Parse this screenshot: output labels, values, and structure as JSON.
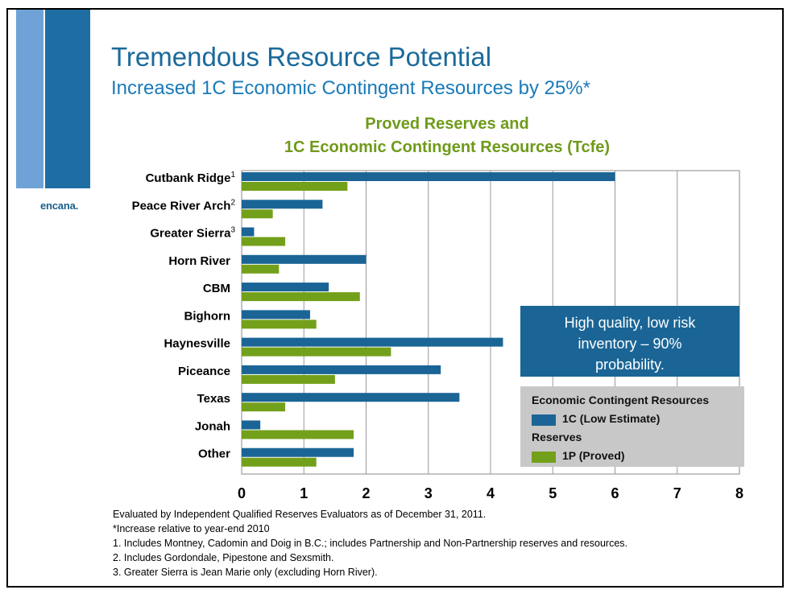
{
  "slide": {
    "title": "Tremendous Resource Potential",
    "subtitle": "Increased 1C Economic Contingent Resources by 25%*",
    "logo": "encana.",
    "colors": {
      "brand_dark": "#1e6ea4",
      "brand_light": "#6fa3d8",
      "series_1c": "#1a6596",
      "series_1p": "#73a01a",
      "title_green": "#6f9a1a"
    }
  },
  "callout": {
    "lines": [
      "High quality, low risk",
      "inventory – 90%",
      "probability."
    ]
  },
  "legend": {
    "heading_contingent": "Economic Contingent Resources",
    "item_1c": "1C (Low Estimate)",
    "heading_reserves": "Reserves",
    "item_1p": "1P (Proved)"
  },
  "notes": [
    "Evaluated by Independent Qualified Reserves Evaluators as of December 31, 2011.",
    "*Increase relative to year-end 2010",
    "1. Includes Montney, Cadomin and Doig in B.C.; includes Partnership and Non-Partnership reserves and resources.",
    "2. Includes Gordondale, Pipestone and Sexsmith.",
    "3. Greater Sierra is Jean Marie only (excluding Horn River)."
  ],
  "chart_data": {
    "type": "bar",
    "orientation": "horizontal",
    "title_lines": [
      "Proved Reserves and",
      "1C Economic Contingent Resources (Tcfe)"
    ],
    "categories": [
      "Cutbank Ridge",
      "Peace River Arch",
      "Greater Sierra",
      "Horn River",
      "CBM",
      "Bighorn",
      "Haynesville",
      "Piceance",
      "Texas",
      "Jonah",
      "Other"
    ],
    "category_superscripts": [
      "1",
      "2",
      "3",
      "",
      "",
      "",
      "",
      "",
      "",
      "",
      ""
    ],
    "series": [
      {
        "name": "1C (Low Estimate)",
        "color": "#1a6596",
        "values": [
          6.0,
          1.3,
          0.2,
          2.0,
          1.4,
          1.1,
          4.2,
          3.2,
          3.5,
          0.3,
          1.8
        ]
      },
      {
        "name": "1P (Proved)",
        "color": "#73a01a",
        "values": [
          1.7,
          0.5,
          0.7,
          0.6,
          1.9,
          1.2,
          2.4,
          1.5,
          0.7,
          1.8,
          1.2
        ]
      }
    ],
    "xlim": [
      0,
      8
    ],
    "xticks": [
      "0",
      "1",
      "2",
      "3",
      "4",
      "5",
      "6",
      "7",
      "8"
    ],
    "grid": true
  }
}
